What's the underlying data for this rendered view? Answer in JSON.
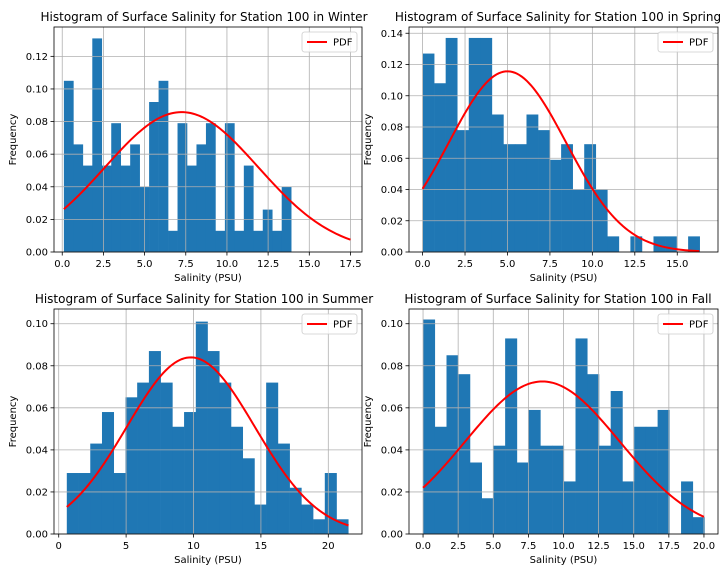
{
  "colors": {
    "bar": "#1f77b4",
    "pdf": "#ff0000",
    "grid": "#b0b0b0",
    "axis": "#000000"
  },
  "legend_label": "PDF",
  "chart_data": [
    {
      "type": "bar",
      "title": "Histogram of Surface Salinity for Station 100 in Winter",
      "xlabel": "Salinity (PSU)",
      "ylabel": "Frequency",
      "xlim": [
        -0.5,
        18.2
      ],
      "ylim": [
        0,
        0.138
      ],
      "xticks": [
        0.0,
        2.5,
        5.0,
        7.5,
        10.0,
        12.5,
        15.0,
        17.5
      ],
      "xtick_labels": [
        "0.0",
        "2.5",
        "5.0",
        "7.5",
        "10.0",
        "12.5",
        "15.0",
        "17.5"
      ],
      "yticks": [
        0,
        0.02,
        0.04,
        0.06,
        0.08,
        0.1,
        0.12
      ],
      "ytick_labels": [
        "0.00",
        "0.02",
        "0.04",
        "0.06",
        "0.08",
        "0.10",
        "0.12"
      ],
      "bin_start": 0.1,
      "bin_width": 0.575,
      "values": [
        0.105,
        0.066,
        0.053,
        0.131,
        0.053,
        0.079,
        0.053,
        0.066,
        0.04,
        0.092,
        0.105,
        0.013,
        0.079,
        0.053,
        0.066,
        0.079,
        0.013,
        0.079,
        0.013,
        0.053,
        0.013,
        0.026,
        0.013,
        0.04
      ],
      "pdf": {
        "x": [
          0.1,
          17.5
        ],
        "mean": 7.25,
        "std": 4.65
      },
      "grid": true,
      "legend": "top-right"
    },
    {
      "type": "bar",
      "title": "Histogram of Surface Salinity for Station 100 in Spring",
      "xlabel": "Salinity (PSU)",
      "ylabel": "Frequency",
      "xlim": [
        -0.8,
        17.4
      ],
      "ylim": [
        0,
        0.144
      ],
      "xticks": [
        0.0,
        2.5,
        5.0,
        7.5,
        10.0,
        12.5,
        15.0
      ],
      "xtick_labels": [
        "0.0",
        "2.5",
        "5.0",
        "7.5",
        "10.0",
        "12.5",
        "15.0"
      ],
      "yticks": [
        0,
        0.02,
        0.04,
        0.06,
        0.08,
        0.1,
        0.12,
        0.14
      ],
      "ytick_labels": [
        "0.00",
        "0.02",
        "0.04",
        "0.06",
        "0.08",
        "0.10",
        "0.12",
        "0.14"
      ],
      "bin_start": 0.0,
      "bin_width": 0.68,
      "values": [
        0.127,
        0.108,
        0.137,
        0.078,
        0.137,
        0.137,
        0.088,
        0.069,
        0.069,
        0.088,
        0.078,
        0.059,
        0.069,
        0.04,
        0.069,
        0.04,
        0.01,
        0.0,
        0.01,
        0.0,
        0.01,
        0.01,
        0.0,
        0.01
      ],
      "pdf": {
        "x": [
          0.0,
          16.3
        ],
        "mean": 5.0,
        "std": 3.45
      },
      "grid": true,
      "legend": "top-right"
    },
    {
      "type": "bar",
      "title": "Histogram of Surface Salinity for Station 100 in Summer",
      "xlabel": "Salinity (PSU)",
      "ylabel": "Frequency",
      "xlim": [
        -0.35,
        22.5
      ],
      "ylim": [
        0,
        0.107
      ],
      "xticks": [
        0,
        5,
        10,
        15,
        20
      ],
      "xtick_labels": [
        "0",
        "5",
        "10",
        "15",
        "20"
      ],
      "yticks": [
        0,
        0.02,
        0.04,
        0.06,
        0.08,
        0.1
      ],
      "ytick_labels": [
        "0.00",
        "0.02",
        "0.04",
        "0.06",
        "0.08",
        "0.10"
      ],
      "bin_start": 0.6,
      "bin_width": 0.87,
      "values": [
        0.029,
        0.029,
        0.043,
        0.058,
        0.029,
        0.065,
        0.072,
        0.087,
        0.072,
        0.051,
        0.058,
        0.101,
        0.087,
        0.072,
        0.051,
        0.036,
        0.014,
        0.072,
        0.043,
        0.022,
        0.014,
        0.007,
        0.029,
        0.007
      ],
      "pdf": {
        "x": [
          0.6,
          21.5
        ],
        "mean": 9.8,
        "std": 4.75
      },
      "grid": true,
      "legend": "top-right"
    },
    {
      "type": "bar",
      "title": "Histogram of Surface Salinity for Station 100 in Fall",
      "xlabel": "Salinity (PSU)",
      "ylabel": "Frequency",
      "xlim": [
        -1.0,
        21.0
      ],
      "ylim": [
        0,
        0.107
      ],
      "xticks": [
        0.0,
        2.5,
        5.0,
        7.5,
        10.0,
        12.5,
        15.0,
        17.5,
        20.0
      ],
      "xtick_labels": [
        "0.0",
        "2.5",
        "5.0",
        "7.5",
        "10.0",
        "12.5",
        "15.0",
        "17.5",
        "20.0"
      ],
      "yticks": [
        0,
        0.02,
        0.04,
        0.06,
        0.08,
        0.1
      ],
      "ytick_labels": [
        "0.00",
        "0.02",
        "0.04",
        "0.06",
        "0.08",
        "0.10"
      ],
      "bin_start": 0.0,
      "bin_width": 0.835,
      "values": [
        0.102,
        0.051,
        0.085,
        0.076,
        0.034,
        0.017,
        0.042,
        0.093,
        0.034,
        0.059,
        0.042,
        0.042,
        0.025,
        0.093,
        0.076,
        0.042,
        0.068,
        0.025,
        0.051,
        0.051,
        0.059,
        0.0,
        0.025,
        0.008
      ],
      "pdf": {
        "x": [
          0.0,
          20.0
        ],
        "mean": 8.5,
        "std": 5.5
      },
      "grid": true,
      "legend": "top-right"
    }
  ]
}
